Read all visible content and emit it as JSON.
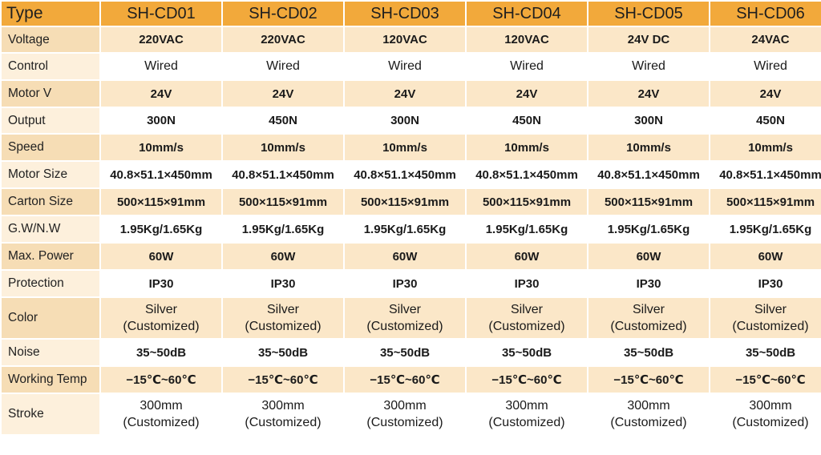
{
  "header": {
    "label": "Type",
    "models": [
      "SH-CD01",
      "SH-CD02",
      "SH-CD03",
      "SH-CD04",
      "SH-CD05",
      "SH-CD06"
    ]
  },
  "rows": [
    {
      "label": "Voltage",
      "values": [
        "220VAC",
        "220VAC",
        "120VAC",
        "120VAC",
        "24V DC",
        "24VAC"
      ]
    },
    {
      "label": "Control",
      "values": [
        "Wired",
        "Wired",
        "Wired",
        "Wired",
        "Wired",
        "Wired"
      ]
    },
    {
      "label": "Motor V",
      "values": [
        "24V",
        "24V",
        "24V",
        "24V",
        "24V",
        "24V"
      ]
    },
    {
      "label": "Output",
      "values": [
        "300N",
        "450N",
        "300N",
        "450N",
        "300N",
        "450N"
      ]
    },
    {
      "label": "Speed",
      "values": [
        "10mm/s",
        "10mm/s",
        "10mm/s",
        "10mm/s",
        "10mm/s",
        "10mm/s"
      ]
    },
    {
      "label": "Motor Size",
      "values": [
        "40.8×51.1×450mm",
        "40.8×51.1×450mm",
        "40.8×51.1×450mm",
        "40.8×51.1×450mm",
        "40.8×51.1×450mm",
        "40.8×51.1×450mm"
      ]
    },
    {
      "label": "Carton Size",
      "values": [
        "500×115×91mm",
        "500×115×91mm",
        "500×115×91mm",
        "500×115×91mm",
        "500×115×91mm",
        "500×115×91mm"
      ]
    },
    {
      "label": "G.W/N.W",
      "values": [
        "1.95Kg/1.65Kg",
        "1.95Kg/1.65Kg",
        "1.95Kg/1.65Kg",
        "1.95Kg/1.65Kg",
        "1.95Kg/1.65Kg",
        "1.95Kg/1.65Kg"
      ]
    },
    {
      "label": "Max. Power",
      "values": [
        "60W",
        "60W",
        "60W",
        "60W",
        "60W",
        "60W"
      ]
    },
    {
      "label": "Protection",
      "values": [
        "IP30",
        "IP30",
        "IP30",
        "IP30",
        "IP30",
        "IP30"
      ]
    },
    {
      "label": "Color",
      "line1": "Silver",
      "line2": "(Customized)"
    },
    {
      "label": "Noise",
      "values": [
        "35~50dB",
        "35~50dB",
        "35~50dB",
        "35~50dB",
        "35~50dB",
        "35~50dB"
      ]
    },
    {
      "label": "Working Temp",
      "values": [
        "−15℃~60℃",
        "−15℃~60℃",
        "−15℃~60℃",
        "−15℃~60℃",
        "−15℃~60℃",
        "−15℃~60℃"
      ]
    },
    {
      "label": "Stroke",
      "line1": "300mm",
      "line2": "(Customized)"
    }
  ]
}
